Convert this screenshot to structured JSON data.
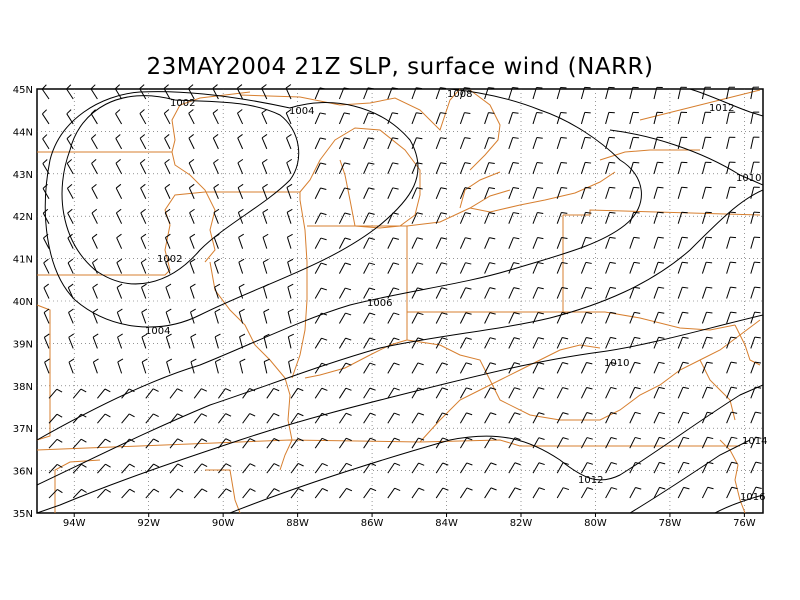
{
  "title": "23MAY2004 21Z SLP, surface wind (NARR)",
  "colors": {
    "boundary": "#d77f2f",
    "contour": "#000000",
    "grid": "#555555",
    "barb": "#000000"
  },
  "x_axis": {
    "ticks": [
      "94W",
      "92W",
      "90W",
      "88W",
      "86W",
      "84W",
      "82W",
      "80W",
      "78W",
      "76W"
    ]
  },
  "y_axis": {
    "ticks": [
      "45N",
      "44N",
      "43N",
      "42N",
      "41N",
      "40N",
      "39N",
      "38N",
      "37N",
      "36N",
      "35N"
    ]
  },
  "contour_labels": {
    "c1002_top": "1002",
    "c1004_top": "1004",
    "c1008_top": "1008",
    "c1012_ne": "1012",
    "c1010_ne": "1010",
    "c1002_mid": "1002",
    "c1004_left": "1004",
    "c1006": "1006",
    "c1010_se": "1010",
    "c1012_se": "1012",
    "c1014": "1014",
    "c1016": "1016"
  },
  "wind_field": {
    "pattern": "southwesterly surface winds with westerly/northwesterly flow in the west",
    "grid_spacing_deg": 1
  }
}
